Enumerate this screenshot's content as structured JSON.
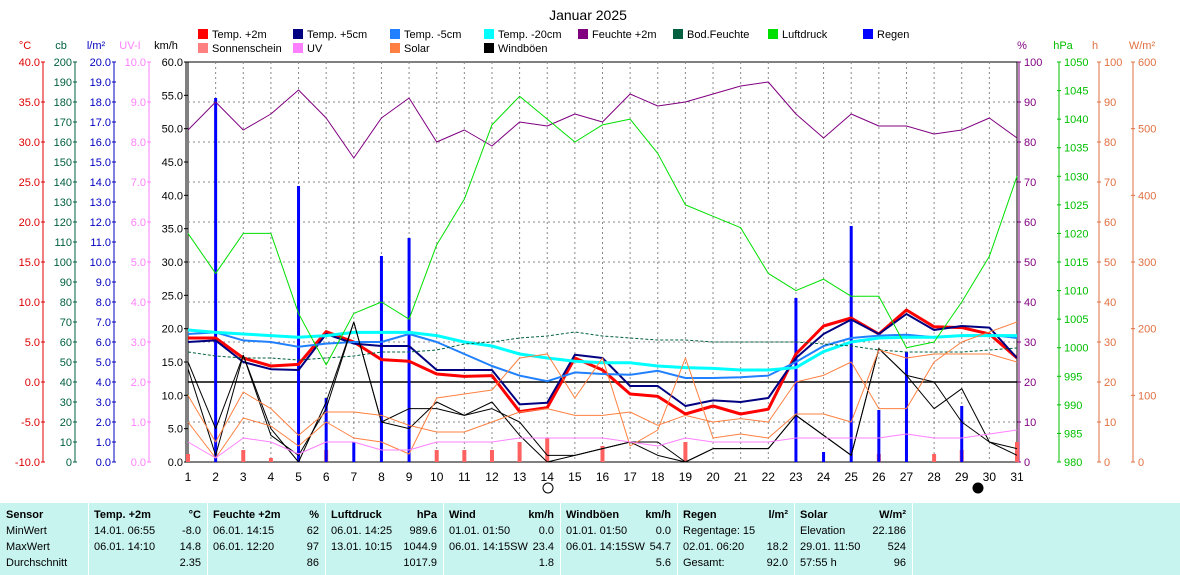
{
  "chart_data": {
    "type": "line",
    "title": "Januar 2025",
    "x": [
      1,
      2,
      3,
      4,
      5,
      6,
      7,
      8,
      9,
      10,
      11,
      12,
      13,
      14,
      15,
      16,
      17,
      18,
      19,
      20,
      21,
      22,
      23,
      24,
      25,
      26,
      27,
      28,
      29,
      30,
      31
    ],
    "x_ticks": [
      "1",
      "2",
      "3",
      "4",
      "5",
      "6",
      "7",
      "8",
      "9",
      "10",
      "11",
      "12",
      "13",
      "14",
      "15",
      "16",
      "17",
      "18",
      "19",
      "20",
      "21",
      "22",
      "23",
      "24",
      "25",
      "26",
      "27",
      "28",
      "29",
      "30",
      "31"
    ],
    "xlim": [
      1,
      31
    ],
    "grid": true,
    "legend_position": "top",
    "axes": [
      {
        "id": "temp",
        "label": "°C",
        "range": [
          -10,
          40
        ],
        "ticks": [
          "-10.0",
          "-5.0",
          "0.0",
          "5.0",
          "10.0",
          "15.0",
          "20.0",
          "25.0",
          "30.0",
          "35.0",
          "40.0"
        ],
        "color": "#e00000"
      },
      {
        "id": "cb",
        "label": "cb",
        "range": [
          0,
          200
        ],
        "ticks": [
          "0",
          "10",
          "20",
          "30",
          "40",
          "50",
          "60",
          "70",
          "80",
          "90",
          "100",
          "110",
          "120",
          "130",
          "140",
          "150",
          "160",
          "170",
          "180",
          "190",
          "200"
        ],
        "color": "#006040"
      },
      {
        "id": "rain",
        "label": "l/m²",
        "range": [
          0,
          20
        ],
        "ticks": [
          "0.0",
          "1.0",
          "2.0",
          "3.0",
          "4.0",
          "5.0",
          "6.0",
          "7.0",
          "8.0",
          "9.0",
          "10.0",
          "11.0",
          "12.0",
          "13.0",
          "14.0",
          "15.0",
          "16.0",
          "17.0",
          "18.0",
          "19.0",
          "20.0"
        ],
        "color": "#0000c0"
      },
      {
        "id": "uv",
        "label": "UV-I",
        "range": [
          0,
          10
        ],
        "ticks": [
          "0.0",
          "1.0",
          "2.0",
          "3.0",
          "4.0",
          "5.0",
          "6.0",
          "7.0",
          "8.0",
          "9.0",
          "10.0"
        ],
        "color": "#ff80ff"
      },
      {
        "id": "wind",
        "label": "km/h",
        "range": [
          0,
          60
        ],
        "ticks": [
          "0.0",
          "5.0",
          "10.0",
          "15.0",
          "20.0",
          "25.0",
          "30.0",
          "35.0",
          "40.0",
          "45.0",
          "50.0",
          "55.0",
          "60.0"
        ],
        "color": "#000000"
      },
      {
        "id": "hum",
        "label": "%",
        "range": [
          0,
          100
        ],
        "ticks": [
          "0",
          "10",
          "20",
          "30",
          "40",
          "50",
          "60",
          "70",
          "80",
          "90",
          "100"
        ],
        "color": "#800080"
      },
      {
        "id": "press",
        "label": "hPa",
        "range": [
          980,
          1050
        ],
        "ticks": [
          "980",
          "985",
          "990",
          "995",
          "1000",
          "1005",
          "1010",
          "1015",
          "1020",
          "1025",
          "1030",
          "1035",
          "1040",
          "1045",
          "1050"
        ],
        "color": "#00c000"
      },
      {
        "id": "sun",
        "label": "h",
        "range": [
          0,
          100
        ],
        "ticks": [
          "0",
          "10",
          "20",
          "30",
          "40",
          "50",
          "60",
          "70",
          "80",
          "90",
          "100"
        ],
        "color": "#e07040"
      },
      {
        "id": "solar",
        "label": "W/m²",
        "range": [
          0,
          600
        ],
        "ticks": [
          "0",
          "100",
          "200",
          "300",
          "400",
          "500",
          "600"
        ],
        "color": "#e07040"
      }
    ],
    "legend": [
      {
        "label": "Temp. +2m",
        "color": "#ff0000"
      },
      {
        "label": "Temp. +5cm",
        "color": "#000080"
      },
      {
        "label": "Temp. -5cm",
        "color": "#2080ff"
      },
      {
        "label": "Temp. -20cm",
        "color": "#00ffff"
      },
      {
        "label": "Feuchte +2m",
        "color": "#800080"
      },
      {
        "label": "Bod.Feuchte",
        "color": "#006040"
      },
      {
        "label": "Luftdruck",
        "color": "#00e000"
      },
      {
        "label": "Regen",
        "color": "#0000ff"
      },
      {
        "label": "Sonnenschein",
        "color": "#ff8080"
      },
      {
        "label": "UV",
        "color": "#ff80ff"
      },
      {
        "label": "Solar",
        "color": "#ff8040"
      },
      {
        "label": "Windböen",
        "color": "#000000"
      }
    ],
    "series": [
      {
        "name": "Temp. +2m",
        "axis": "temp",
        "color": "#ff0000",
        "width": 3,
        "values": [
          5.5,
          5.5,
          3.0,
          2.0,
          2.2,
          6.3,
          5.0,
          2.8,
          2.6,
          1.0,
          0.7,
          0.8,
          -3.7,
          -3.2,
          3.0,
          1.5,
          -1.5,
          -1.8,
          -4.0,
          -3.0,
          -4.0,
          -3.4,
          3.5,
          7.0,
          8.0,
          6.0,
          9.0,
          6.9,
          6.8,
          6.0,
          3.0
        ]
      },
      {
        "name": "Temp. +5cm",
        "axis": "temp",
        "color": "#000080",
        "width": 2,
        "values": [
          5.0,
          5.2,
          2.5,
          1.6,
          1.5,
          6.0,
          4.8,
          4.5,
          4.5,
          1.5,
          1.5,
          1.5,
          -2.8,
          -2.6,
          3.4,
          3.0,
          -0.5,
          -0.5,
          -3.0,
          -2.3,
          -2.5,
          -2.0,
          3.0,
          6.0,
          7.8,
          6.0,
          8.5,
          6.5,
          7.0,
          6.8,
          3.0
        ]
      },
      {
        "name": "Temp. -5cm",
        "axis": "temp",
        "color": "#2080ff",
        "width": 2,
        "values": [
          6.0,
          6.2,
          5.2,
          5.0,
          4.4,
          4.8,
          5.0,
          5.0,
          6.0,
          5.0,
          3.5,
          2.0,
          0.8,
          0.1,
          1.2,
          1.0,
          0.9,
          1.4,
          0.5,
          0.5,
          0.6,
          0.8,
          2.5,
          4.5,
          5.5,
          5.8,
          5.9,
          5.6,
          5.8,
          5.9,
          5.5
        ]
      },
      {
        "name": "Temp. -20cm",
        "axis": "temp",
        "color": "#00ffff",
        "width": 3,
        "values": [
          6.5,
          6.2,
          6.0,
          5.8,
          5.6,
          5.8,
          6.2,
          6.2,
          6.2,
          5.8,
          5.0,
          4.5,
          3.5,
          3.0,
          2.6,
          2.4,
          2.4,
          2.0,
          1.8,
          1.7,
          1.5,
          1.5,
          1.8,
          3.8,
          5.0,
          5.5,
          5.6,
          5.6,
          5.8,
          5.8,
          5.8
        ]
      },
      {
        "name": "Feuchte +2m",
        "axis": "hum",
        "color": "#800080",
        "width": 1,
        "values": [
          83,
          90,
          83,
          87,
          93,
          86,
          76,
          86,
          91,
          80,
          83,
          79,
          85,
          84,
          87,
          85,
          92,
          89,
          90,
          92,
          94,
          95,
          87,
          81,
          87,
          84,
          84,
          82,
          83,
          86,
          81
        ]
      },
      {
        "name": "Bod.Feuchte",
        "axis": "cb",
        "color": "#006040",
        "width": 1,
        "dash": "3,2",
        "values": [
          55,
          53,
          52,
          52,
          51,
          52,
          53,
          55,
          55,
          56,
          59,
          60,
          62,
          63,
          65,
          63,
          62,
          61,
          61,
          60,
          60,
          60,
          60,
          59,
          58,
          56,
          55,
          55,
          55,
          56,
          57
        ]
      },
      {
        "name": "Luftdruck",
        "axis": "press",
        "color": "#00e000",
        "width": 1,
        "values": [
          1020,
          1013,
          1020,
          1020,
          1006,
          997,
          1006,
          1008,
          1005,
          1018,
          1026,
          1039,
          1044,
          1040,
          1036,
          1039,
          1040,
          1034,
          1025,
          1023,
          1021,
          1013,
          1010,
          1012,
          1009,
          1009,
          1000,
          1001,
          1008,
          1016,
          1030
        ]
      },
      {
        "name": "Windböen",
        "axis": "wind",
        "color": "#000000",
        "width": 1,
        "values": [
          15,
          5,
          16,
          5,
          0,
          9,
          21,
          6,
          5,
          9,
          7,
          9,
          4,
          0,
          1,
          2,
          3,
          3,
          0,
          2,
          2,
          2,
          7,
          4,
          1,
          17,
          13,
          12,
          6,
          3,
          2
        ]
      },
      {
        "name": "Wind",
        "axis": "wind",
        "color": "#000000",
        "width": 1,
        "values": [
          14,
          1,
          16,
          4,
          1,
          8,
          21,
          6,
          8,
          8,
          7,
          8,
          6,
          1,
          1,
          2,
          3,
          1,
          0,
          2,
          2,
          2,
          7,
          4,
          1,
          17,
          13,
          8,
          11,
          3,
          1
        ]
      },
      {
        "name": "Solar",
        "axis": "solar",
        "color": "#ff8040",
        "width": 1,
        "values": [
          100,
          30,
          105,
          80,
          40,
          75,
          75,
          70,
          55,
          45,
          45,
          60,
          75,
          80,
          70,
          70,
          75,
          55,
          70,
          60,
          65,
          60,
          120,
          130,
          150,
          80,
          80,
          150,
          180,
          195,
          210
        ]
      },
      {
        "name": "Sonnenschein",
        "axis": "sun",
        "color": "#ff8040",
        "width": 1,
        "values": [
          10,
          1,
          11,
          9,
          4,
          10,
          6,
          5,
          2,
          16,
          17,
          18,
          26,
          27,
          16,
          26,
          4,
          8,
          26,
          6,
          7,
          6,
          12,
          12,
          10,
          28,
          26,
          27,
          27,
          27,
          25
        ]
      },
      {
        "name": "UV",
        "axis": "uv",
        "color": "#ff80ff",
        "width": 1,
        "values": [
          0.5,
          0.1,
          0.6,
          0.5,
          0.2,
          0.5,
          0.5,
          0.3,
          0.3,
          0.5,
          0.5,
          0.5,
          0.6,
          0.6,
          0.6,
          0.6,
          0.5,
          0.4,
          0.6,
          0.5,
          0.5,
          0.5,
          0.6,
          0.6,
          0.6,
          0.6,
          0.7,
          0.6,
          0.6,
          0.7,
          0.8
        ]
      }
    ],
    "rain": {
      "name": "Regen",
      "axis": "rain",
      "color": "#0000ff",
      "days": [
        2,
        5,
        6,
        7,
        8,
        9,
        23,
        24,
        25,
        26,
        27,
        29
      ],
      "values": [
        18.2,
        13.8,
        3.2,
        1.0,
        10.3,
        11.2,
        8.2,
        0.5,
        11.8,
        2.6,
        5.5,
        2.8
      ]
    },
    "sunshine_bars": {
      "name": "Sonnenschein",
      "color": "#ff6060",
      "days": [
        1,
        3,
        4,
        6,
        10,
        11,
        12,
        13,
        14,
        16,
        19,
        26,
        28,
        29,
        31
      ],
      "hours": [
        2,
        3,
        1,
        3,
        3,
        3,
        3,
        5,
        6,
        4,
        5,
        2,
        2,
        3,
        5
      ]
    },
    "reference_line": {
      "axis": "temp",
      "value": 0.0
    }
  },
  "stats": {
    "headers": {
      "sensor": "Sensor",
      "temp": "Temp. +2m",
      "temp_unit": "°C",
      "hum": "Feuchte +2m",
      "hum_unit": "%",
      "press": "Luftdruck",
      "press_unit": "hPa",
      "wind": "Wind",
      "wind_unit": "km/h",
      "gust": "Windböen",
      "gust_unit": "km/h",
      "rain": "Regen",
      "rain_unit": "l/m²",
      "solar": "Solar",
      "solar_unit": "W/m²"
    },
    "rows": [
      {
        "label": "MinWert",
        "temp_t": "14.01.  06:55",
        "temp_v": "-8.0",
        "hum_t": "06.01.  14:15",
        "hum_v": "62",
        "press_t": "06.01.  14:25",
        "press_v": "989.6",
        "wind_t": "01.01.  01:50",
        "wind_v": "0.0",
        "gust_t": "01.01.  01:50",
        "gust_v": "0.0",
        "rain_t": "Regentage: 15",
        "rain_v": "",
        "solar_t": "Elevation",
        "solar_v": "22.186"
      },
      {
        "label": "MaxWert",
        "temp_t": "06.01.  14:10",
        "temp_v": "14.8",
        "hum_t": "06.01.  12:20",
        "hum_v": "97",
        "press_t": "13.01.  10:15",
        "press_v": "1044.9",
        "wind_t": "06.01.  14:15SW",
        "wind_v": "23.4",
        "gust_t": "06.01.  14:15SW",
        "gust_v": "54.7",
        "rain_t": "02.01.  06:20",
        "rain_v": "18.2",
        "solar_t": "29.01.  11:50",
        "solar_v": "524"
      },
      {
        "label": "Durchschnitt",
        "temp_t": "",
        "temp_v": "2.35",
        "hum_t": "",
        "hum_v": "86",
        "press_t": "",
        "press_v": "1017.9",
        "wind_t": "",
        "wind_v": "1.8",
        "gust_t": "",
        "gust_v": "5.6",
        "rain_t": "Gesamt:",
        "rain_v": "92.0",
        "solar_t": "57:55 h",
        "solar_v": "96"
      }
    ]
  }
}
